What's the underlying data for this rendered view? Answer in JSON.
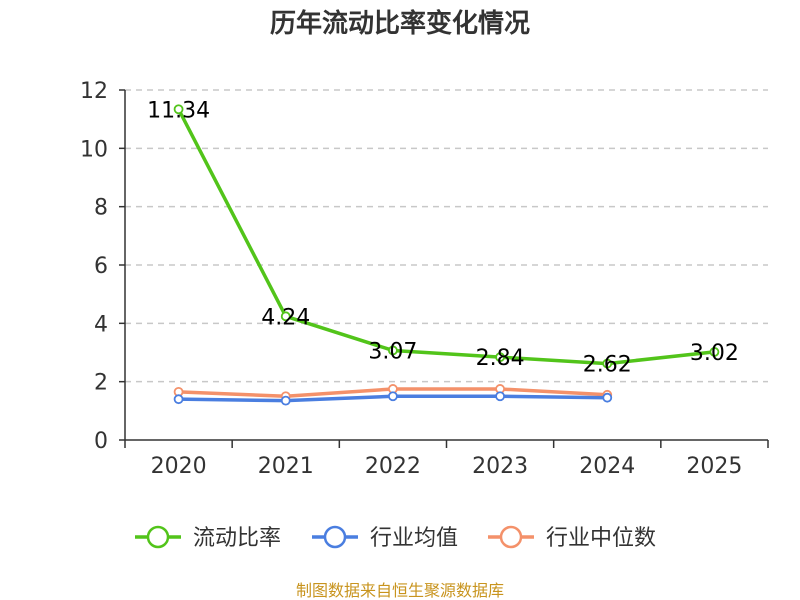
{
  "chart_data": {
    "type": "line",
    "title": "历年流动比率变化情况",
    "categories": [
      "2020",
      "2021",
      "2022",
      "2023",
      "2024",
      "2025"
    ],
    "ylim": [
      0,
      12
    ],
    "yticks": [
      0,
      2,
      4,
      6,
      8,
      10,
      12
    ],
    "grid": true,
    "legend_position": "bottom",
    "series": [
      {
        "name": "流动比率",
        "color": "#52c41a",
        "values": [
          11.34,
          4.24,
          3.07,
          2.84,
          2.62,
          3.02
        ],
        "labels": [
          "11.34",
          "4.24",
          "3.07",
          "2.84",
          "2.62",
          "3.02"
        ]
      },
      {
        "name": "行业均值",
        "color": "#4a7ee0",
        "values": [
          1.4,
          1.35,
          1.5,
          1.5,
          1.45,
          null
        ]
      },
      {
        "name": "行业中位数",
        "color": "#f4916a",
        "values": [
          1.65,
          1.5,
          1.75,
          1.75,
          1.55,
          null
        ]
      }
    ],
    "source": "制图数据来自恒生聚源数据库"
  }
}
